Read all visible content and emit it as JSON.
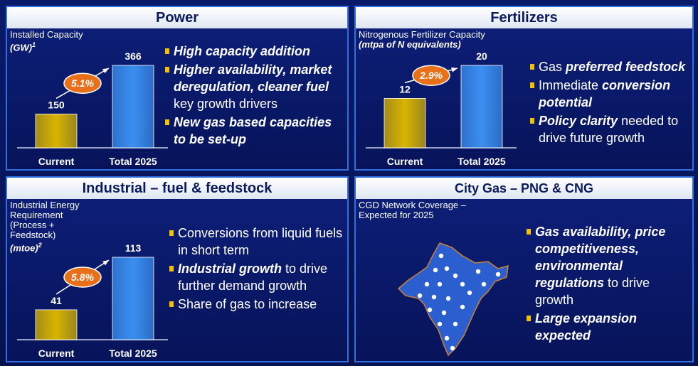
{
  "panels": [
    {
      "title": "Power",
      "chart": {
        "type": "bar",
        "label_lines": [
          "Installed Capacity"
        ],
        "unit": "(GW)",
        "footnote": "1",
        "categories": [
          "Current",
          "Total 2025"
        ],
        "values": [
          150,
          366
        ],
        "colors": [
          "#d8b400",
          "#3b8ff0"
        ],
        "cagr": "5.1%"
      },
      "bullets": [
        [
          {
            "text": "High capacity addition",
            "style": "bi"
          }
        ],
        [
          {
            "text": "Higher availability, market deregulation, cleaner fuel",
            "style": "bi"
          },
          {
            "text": " key growth drivers",
            "style": "n"
          }
        ],
        [
          {
            "text": "New gas based capacities to be set-up",
            "style": "bi"
          }
        ]
      ]
    },
    {
      "title": "Fertilizers",
      "chart": {
        "type": "bar",
        "label_lines": [
          "Nitrogenous Fertilizer Capacity"
        ],
        "unit": "(mtpa of N equivalents)",
        "categories": [
          "Current",
          "Total 2025"
        ],
        "values": [
          12,
          20
        ],
        "colors": [
          "#d8b400",
          "#3b8ff0"
        ],
        "cagr": "2.9%"
      },
      "bullets": [
        [
          {
            "text": "Gas ",
            "style": "n"
          },
          {
            "text": "preferred feedstock",
            "style": "bi"
          }
        ],
        [
          {
            "text": "Immediate ",
            "style": "n"
          },
          {
            "text": "conversion potential",
            "style": "bi"
          }
        ],
        [
          {
            "text": "Policy clarity",
            "style": "bi"
          },
          {
            "text": " needed to drive future growth",
            "style": "n"
          }
        ]
      ]
    },
    {
      "title": "Industrial – fuel & feedstock",
      "chart": {
        "type": "bar",
        "label_lines": [
          "Industrial Energy",
          "Requirement",
          " (Process +",
          "Feedstock)"
        ],
        "unit": "(mtoe)",
        "footnote": "2",
        "categories": [
          "Current",
          "Total 2025"
        ],
        "values": [
          41,
          113
        ],
        "colors": [
          "#d8b400",
          "#3b8ff0"
        ],
        "cagr": "5.8%"
      },
      "bullets": [
        [
          {
            "text": "Conversions from liquid fuels in short term",
            "style": "n"
          }
        ],
        [
          {
            "text": "Industrial growth",
            "style": "bi"
          },
          {
            "text": " to drive further demand growth",
            "style": "n"
          }
        ],
        [
          {
            "text": "Share of gas to increase",
            "style": "n"
          }
        ]
      ]
    },
    {
      "title": "City Gas – PNG & CNG",
      "chart": {
        "type": "map",
        "label_lines": [
          "CGD Network Coverage –",
          "Expected for 2025"
        ]
      },
      "bullets": [
        [
          {
            "text": "Gas availability, price competitiveness, environmental regulations",
            "style": "bi"
          },
          {
            "text": " to drive growth",
            "style": "n"
          }
        ],
        [
          {
            "text": "Large expansion expected",
            "style": "bi"
          }
        ]
      ]
    }
  ]
}
